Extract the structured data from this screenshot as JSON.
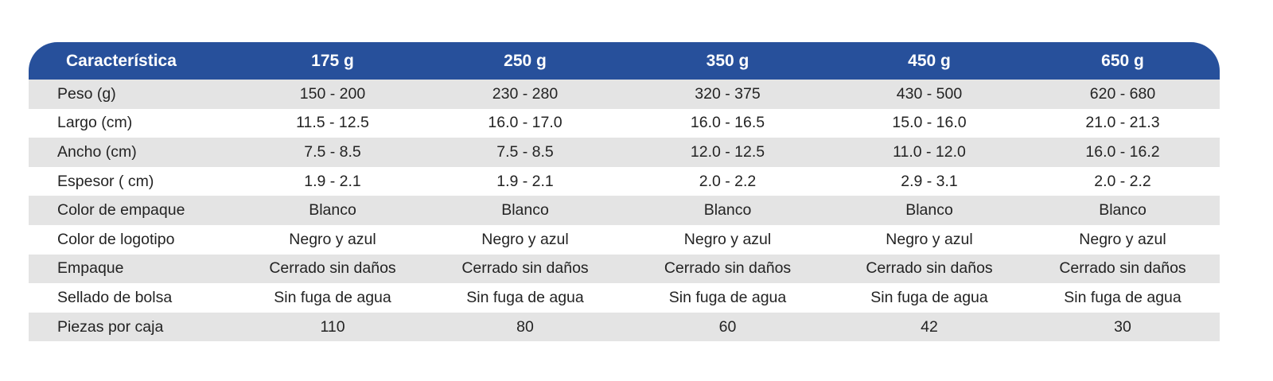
{
  "table": {
    "headers": [
      "Característica",
      "175 g",
      "250 g",
      "350 g",
      "450 g",
      "650 g"
    ],
    "rows": [
      [
        "Peso (g)",
        "150 - 200",
        "230 - 280",
        "320 - 375",
        "430 - 500",
        "620 - 680"
      ],
      [
        "Largo (cm)",
        "11.5 - 12.5",
        "16.0 - 17.0",
        "16.0 - 16.5",
        "15.0 - 16.0",
        "21.0 - 21.3"
      ],
      [
        "Ancho (cm)",
        "7.5 - 8.5",
        "7.5 - 8.5",
        "12.0 - 12.5",
        "11.0 - 12.0",
        "16.0 - 16.2"
      ],
      [
        "Espesor ( cm)",
        "1.9 - 2.1",
        "1.9 - 2.1",
        "2.0 - 2.2",
        "2.9 - 3.1",
        "2.0 - 2.2"
      ],
      [
        "Color de empaque",
        "Blanco",
        "Blanco",
        "Blanco",
        "Blanco",
        "Blanco"
      ],
      [
        "Color de logotipo",
        "Negro y azul",
        "Negro y azul",
        "Negro y azul",
        "Negro y azul",
        "Negro y azul"
      ],
      [
        "Empaque",
        "Cerrado sin daños",
        "Cerrado sin daños",
        "Cerrado sin daños",
        "Cerrado sin daños",
        "Cerrado sin daños"
      ],
      [
        "Sellado de bolsa",
        "Sin fuga de agua",
        "Sin fuga de agua",
        "Sin fuga de agua",
        "Sin fuga de agua",
        "Sin fuga de agua"
      ],
      [
        "Piezas por caja",
        "110",
        "80",
        "60",
        "42",
        "30"
      ]
    ]
  },
  "colors": {
    "header_bg": "#27509b",
    "header_text": "#ffffff",
    "shaded_row": "#e4e4e4",
    "body_text": "#232323"
  }
}
